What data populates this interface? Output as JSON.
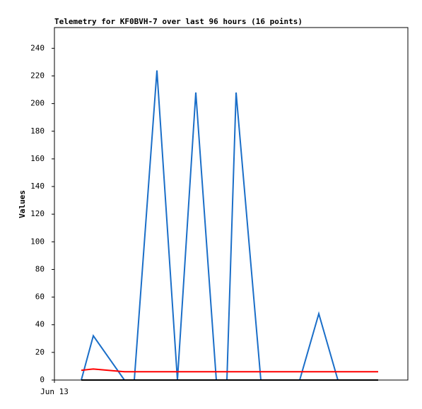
{
  "chart_data": {
    "type": "line",
    "title": "Telemetry for KF0BVH-7 over last 96 hours (16 points)",
    "y_label": "Values",
    "x": [
      7.6,
      11,
      19.8,
      22.6,
      29,
      34.8,
      40,
      45.8,
      48.8,
      51.4,
      58.4,
      63.8,
      69.4,
      74.8,
      80.2,
      91.6
    ],
    "xlim": [
      0,
      100
    ],
    "xticks": [
      {
        "value": 0,
        "label": "Jun 13"
      }
    ],
    "ylim": [
      0,
      255
    ],
    "yticks": [
      0,
      20,
      40,
      60,
      80,
      100,
      120,
      140,
      160,
      180,
      200,
      220,
      240
    ],
    "series": [
      {
        "color": "#1a6ec8",
        "values": [
          0,
          32,
          0,
          0,
          224,
          0,
          208,
          0,
          0,
          208,
          0,
          0,
          0,
          48,
          0,
          0
        ]
      },
      {
        "color": "#ff0000",
        "values": [
          7,
          8,
          6,
          6,
          6,
          6,
          6,
          6,
          6,
          6,
          6,
          6,
          6,
          6,
          6,
          6
        ]
      },
      {
        "color": "#000000",
        "values": [
          0,
          0,
          0,
          0,
          0,
          0,
          0,
          0,
          0,
          0,
          0,
          0,
          0,
          0,
          0,
          0
        ]
      }
    ]
  }
}
